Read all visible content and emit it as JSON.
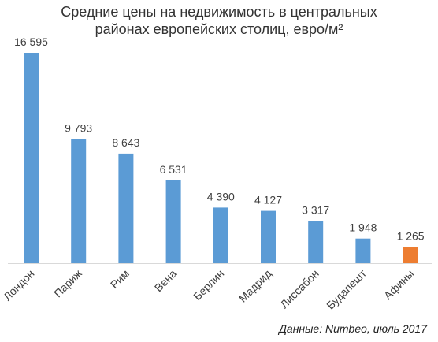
{
  "chart_data": {
    "type": "bar",
    "title_lines": [
      "Средние цены на недвижимость в центральных",
      "районах европейских столиц, евро/м²"
    ],
    "categories": [
      "Лондон",
      "Париж",
      "Рим",
      "Вена",
      "Берлин",
      "Мадрид",
      "Лиссабон",
      "Будапешт",
      "Афины"
    ],
    "values": [
      16595,
      9793,
      8643,
      6531,
      4390,
      4127,
      3317,
      1948,
      1265
    ],
    "value_labels": [
      "16 595",
      "9 793",
      "8 643",
      "6 531",
      "4 390",
      "4 127",
      "3 317",
      "1 948",
      "1 265"
    ],
    "bar_color": "#5b9bd5",
    "highlight_color": "#ed7d31",
    "highlight_category": "Афины",
    "ylim": [
      0,
      16595
    ],
    "grid": false,
    "legend": "none"
  },
  "source_note": "Данные: Numbeo, июль 2017"
}
